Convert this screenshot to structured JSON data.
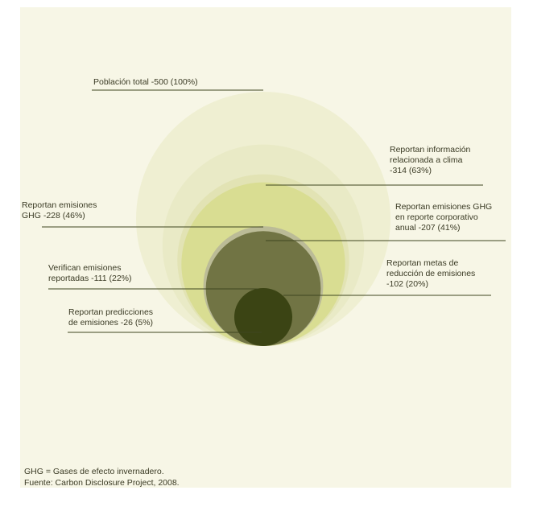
{
  "diagram": {
    "type": "nested-circles",
    "items": [
      {
        "label": "Población total -500 (100%)",
        "value": 500,
        "percent": 100,
        "color": "#efefd2"
      },
      {
        "label": "Reportan información\nrelacionada a clima\n-314 (63%)",
        "value": 314,
        "percent": 63,
        "color": "#e9eac6"
      },
      {
        "label": "Reportan emisiones\nGHG -228 (46%)",
        "value": 228,
        "percent": 46,
        "color": "#e2e3b4"
      },
      {
        "label": "Reportan emisiones GHG\nen reporte corporativo\nanual -207 (41%)",
        "value": 207,
        "percent": 41,
        "color": "#d9dd92"
      },
      {
        "label": "Verifican emisiones\nreportadas -111 (22%)",
        "value": 111,
        "percent": 22,
        "color": "#bbbb97"
      },
      {
        "label": "Reportan metas de\nreducción de emisiones\n-102 (20%)",
        "value": 102,
        "percent": 20,
        "color": "#717444"
      },
      {
        "label": "Reportan predicciones\nde emisiones -26 (5%)",
        "value": 26,
        "percent": 5,
        "color": "#3b4414"
      }
    ]
  },
  "footnotes": {
    "line1": "GHG = Gases de efecto invernadero.",
    "line2": "Fuente: Carbon Disclosure Project, 2008."
  }
}
